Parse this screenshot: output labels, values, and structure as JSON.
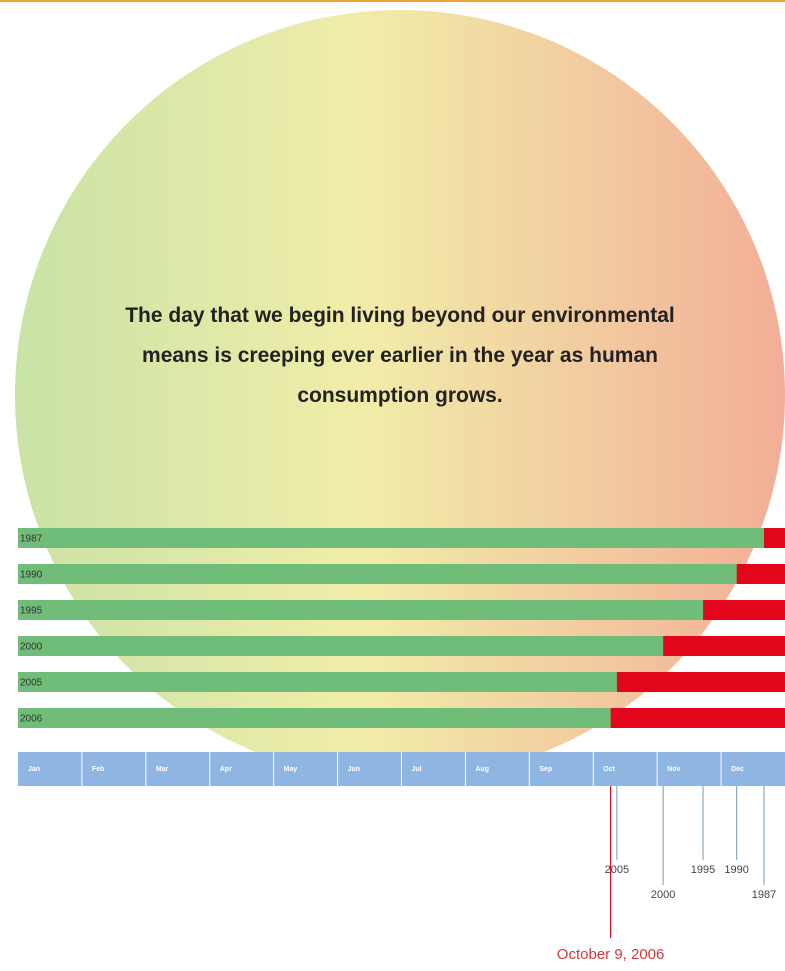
{
  "chart_data": {
    "type": "bar",
    "title": "The day that we begin living beyond our environmental means is creeping ever earlier in the year as human consumption grows.",
    "categories": [
      "1987",
      "1990",
      "1995",
      "2000",
      "2005",
      "2006"
    ],
    "values": [
      355,
      342,
      326,
      307,
      285,
      282
    ],
    "color": "#6fbd78",
    "overshoot_color": "#e2061c",
    "xlim": [
      0,
      365
    ],
    "months": [
      "Jan",
      "Feb",
      "Mar",
      "Apr",
      "May",
      "Jun",
      "Jul",
      "Aug",
      "Sep",
      "Oct",
      "Nov",
      "Dec"
    ],
    "annotation": "October 9, 2006"
  }
}
